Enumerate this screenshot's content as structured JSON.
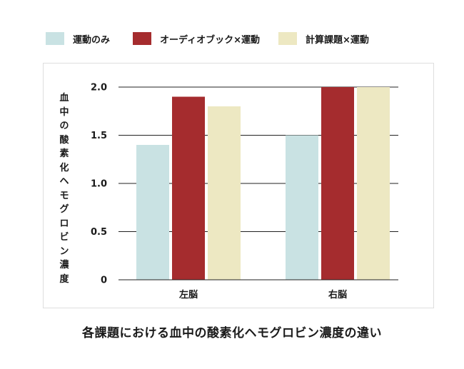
{
  "chart_data": {
    "type": "bar",
    "title": "各課題における血中の酸素化ヘモグロビン濃度の違い",
    "ylabel": "血中の酸素化ヘモグロビン濃度",
    "xlabel": "",
    "categories": [
      "左脳",
      "右脳"
    ],
    "series": [
      {
        "name": "運動のみ",
        "color": "#c9e2e3",
        "values": [
          1.4,
          1.5
        ]
      },
      {
        "name": "オーディオブック×運動",
        "color": "#a52c2e",
        "values": [
          1.9,
          2.0
        ]
      },
      {
        "name": "計算課題×運動",
        "color": "#ede8c2",
        "values": [
          1.8,
          2.0
        ]
      }
    ],
    "ylim": [
      0,
      2.0
    ],
    "yticks": [
      "0",
      "0.5",
      "1.0",
      "1.5",
      "2.0"
    ],
    "ytick_values": [
      0,
      0.5,
      1.0,
      1.5,
      2.0
    ],
    "grid": true,
    "legend_position": "top"
  }
}
